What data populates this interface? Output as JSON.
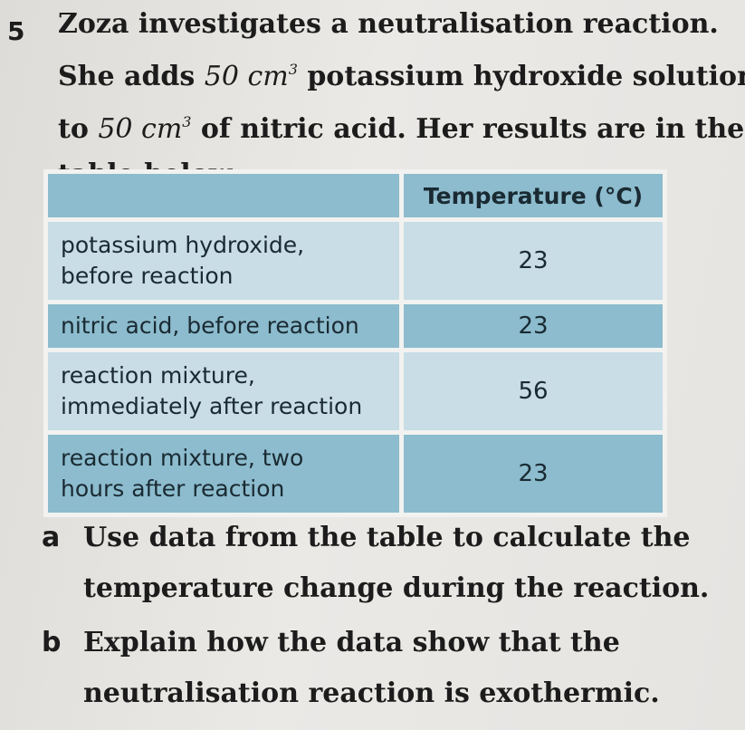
{
  "question": {
    "number": "5",
    "stem_line1": "Zoza investigates a neutralisation reaction.",
    "stem_line2_a": "She adds ",
    "stem_line2_unit": "50 cm",
    "stem_line2_b": " potassium hydroxide solution",
    "stem_line3_a": "to ",
    "stem_line3_unit": "50 cm",
    "stem_line3_b": " of nitric acid. Her results are in the",
    "stem_line4": "table below.",
    "unit_power": "3"
  },
  "table": {
    "header_empty": "",
    "header": "Temperature (°C)",
    "rows": [
      {
        "label_1": "potassium hydroxide,",
        "label_2": "before reaction",
        "value": "23"
      },
      {
        "label_1": "nitric acid, before reaction",
        "label_2": "",
        "value": "23"
      },
      {
        "label_1": "reaction mixture,",
        "label_2": "immediately after reaction",
        "value": "56"
      },
      {
        "label_1": "reaction mixture, two",
        "label_2": "hours after reaction",
        "value": "23"
      }
    ]
  },
  "parts": {
    "a_letter": "a",
    "a_line1": "Use data from the table to calculate the",
    "a_line2": "temperature change during the reaction.",
    "b_letter": "b",
    "b_line1": "Explain how the data show that the",
    "b_line2": "neutralisation reaction is exothermic."
  },
  "colors": {
    "header_fill": "#8cbccd",
    "light_fill": "#c8dde6",
    "dark_fill": "#8cbccd"
  }
}
